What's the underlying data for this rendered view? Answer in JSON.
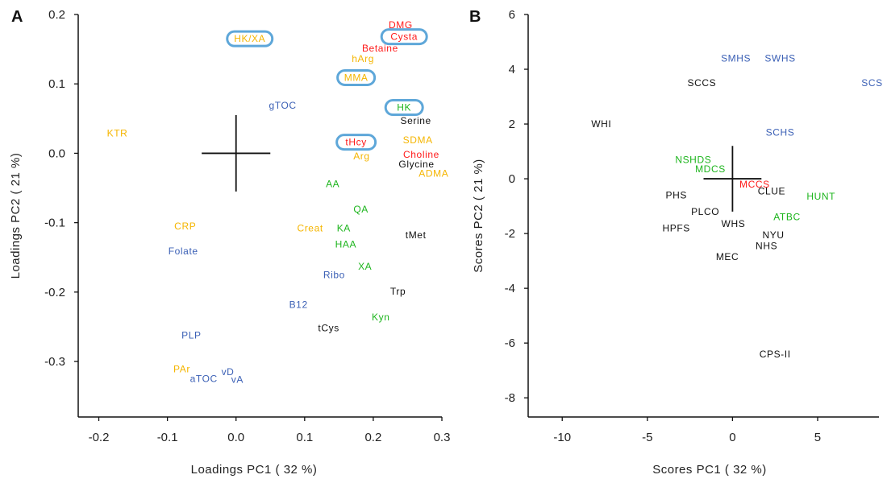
{
  "colors": {
    "orange": "#f5b500",
    "red": "#ff1a1a",
    "blue": "#3a5fb5",
    "green": "#1db51d",
    "black": "#111111",
    "highlight_box": "#5ea7d9"
  },
  "chart_data": [
    {
      "panel": "A",
      "type": "scatter",
      "xlabel": "Loadings PC1 ( 32 %)",
      "ylabel": "Loadings PC2 ( 21 %)",
      "xlim": [
        -0.23,
        0.3
      ],
      "ylim": [
        -0.38,
        0.2
      ],
      "xticks": [
        "-0.2",
        "-0.1",
        "0.0",
        "0.1",
        "0.2",
        "0.3"
      ],
      "yticks": [
        "0.2",
        "0.1",
        "0.0",
        "-0.1",
        "-0.2",
        "-0.3"
      ],
      "xtick_values": [
        -0.2,
        -0.1,
        0.0,
        0.1,
        0.2,
        0.3
      ],
      "ytick_values": [
        0.2,
        0.1,
        0.0,
        -0.1,
        -0.2,
        -0.3
      ],
      "cross": {
        "x": 0,
        "y": 0,
        "dx": 0.05,
        "dy": 0.055
      },
      "points": [
        {
          "label": "DMG",
          "x": 0.24,
          "y": 0.185,
          "color": "red"
        },
        {
          "label": "Cysta",
          "x": 0.245,
          "y": 0.168,
          "color": "red",
          "boxed": true
        },
        {
          "label": "Betaine",
          "x": 0.21,
          "y": 0.151,
          "color": "red"
        },
        {
          "label": "hArg",
          "x": 0.185,
          "y": 0.136,
          "color": "orange"
        },
        {
          "label": "HK/XA",
          "x": 0.02,
          "y": 0.165,
          "color": "orange",
          "boxed": true
        },
        {
          "label": "MMA",
          "x": 0.175,
          "y": 0.109,
          "color": "orange",
          "boxed": true
        },
        {
          "label": "HK",
          "x": 0.245,
          "y": 0.066,
          "color": "green",
          "boxed": true
        },
        {
          "label": "gTOC",
          "x": 0.068,
          "y": 0.069,
          "color": "blue"
        },
        {
          "label": "Serine",
          "x": 0.262,
          "y": 0.047,
          "color": "black"
        },
        {
          "label": "KTR",
          "x": -0.173,
          "y": 0.029,
          "color": "orange"
        },
        {
          "label": "SDMA",
          "x": 0.265,
          "y": 0.019,
          "color": "orange"
        },
        {
          "label": "tHcy",
          "x": 0.175,
          "y": 0.016,
          "color": "red",
          "boxed": true
        },
        {
          "label": "Choline",
          "x": 0.27,
          "y": -0.002,
          "color": "red"
        },
        {
          "label": "Arg",
          "x": 0.183,
          "y": -0.004,
          "color": "orange"
        },
        {
          "label": "Glycine",
          "x": 0.263,
          "y": -0.016,
          "color": "black"
        },
        {
          "label": "ADMA",
          "x": 0.288,
          "y": -0.029,
          "color": "orange"
        },
        {
          "label": "AA",
          "x": 0.141,
          "y": -0.044,
          "color": "green"
        },
        {
          "label": "QA",
          "x": 0.182,
          "y": -0.081,
          "color": "green"
        },
        {
          "label": "CRP",
          "x": -0.074,
          "y": -0.105,
          "color": "orange"
        },
        {
          "label": "Creat",
          "x": 0.108,
          "y": -0.108,
          "color": "orange"
        },
        {
          "label": "KA",
          "x": 0.157,
          "y": -0.108,
          "color": "green"
        },
        {
          "label": "tMet",
          "x": 0.262,
          "y": -0.118,
          "color": "black"
        },
        {
          "label": "HAA",
          "x": 0.16,
          "y": -0.131,
          "color": "green"
        },
        {
          "label": "Folate",
          "x": -0.077,
          "y": -0.141,
          "color": "blue"
        },
        {
          "label": "XA",
          "x": 0.188,
          "y": -0.163,
          "color": "green"
        },
        {
          "label": "Ribo",
          "x": 0.143,
          "y": -0.175,
          "color": "blue"
        },
        {
          "label": "Trp",
          "x": 0.236,
          "y": -0.199,
          "color": "black"
        },
        {
          "label": "B12",
          "x": 0.091,
          "y": -0.218,
          "color": "blue"
        },
        {
          "label": "Kyn",
          "x": 0.211,
          "y": -0.236,
          "color": "green"
        },
        {
          "label": "tCys",
          "x": 0.135,
          "y": -0.252,
          "color": "black"
        },
        {
          "label": "PLP",
          "x": -0.065,
          "y": -0.262,
          "color": "blue"
        },
        {
          "label": "PAr",
          "x": -0.079,
          "y": -0.311,
          "color": "orange"
        },
        {
          "label": "vD",
          "x": -0.012,
          "y": -0.315,
          "color": "blue"
        },
        {
          "label": "aTOC",
          "x": -0.047,
          "y": -0.325,
          "color": "blue"
        },
        {
          "label": "vA",
          "x": 0.002,
          "y": -0.326,
          "color": "blue"
        }
      ]
    },
    {
      "panel": "B",
      "type": "scatter",
      "xlabel": "Scores PC1 ( 32 %)",
      "ylabel": "Scores PC2 ( 21 %)",
      "xlim": [
        -12,
        8.6
      ],
      "ylim": [
        -8.7,
        6
      ],
      "xticks": [
        "-10",
        "-5",
        "0",
        "5"
      ],
      "yticks": [
        "6",
        "4",
        "2",
        "0",
        "-2",
        "-4",
        "-6",
        "-8"
      ],
      "xtick_values": [
        -10,
        -5,
        0,
        5
      ],
      "ytick_values": [
        6,
        4,
        2,
        0,
        -2,
        -4,
        -6,
        -8
      ],
      "cross": {
        "x": 0,
        "y": 0,
        "dx": 1.7,
        "dy": 1.2
      },
      "points": [
        {
          "label": "SMHS",
          "x": 0.2,
          "y": 4.4,
          "color": "blue"
        },
        {
          "label": "SWHS",
          "x": 2.8,
          "y": 4.4,
          "color": "blue"
        },
        {
          "label": "SCS",
          "x": 8.2,
          "y": 3.5,
          "color": "blue"
        },
        {
          "label": "SCCS",
          "x": -1.8,
          "y": 3.5,
          "color": "black"
        },
        {
          "label": "WHI",
          "x": -7.7,
          "y": 2.0,
          "color": "black"
        },
        {
          "label": "SCHS",
          "x": 2.8,
          "y": 1.7,
          "color": "blue"
        },
        {
          "label": "NSHDS",
          "x": -2.3,
          "y": 0.7,
          "color": "green"
        },
        {
          "label": "MDCS",
          "x": -1.3,
          "y": 0.35,
          "color": "green"
        },
        {
          "label": "MCCS",
          "x": 1.3,
          "y": -0.2,
          "color": "red"
        },
        {
          "label": "CLUE",
          "x": 2.3,
          "y": -0.45,
          "color": "black"
        },
        {
          "label": "HUNT",
          "x": 5.2,
          "y": -0.65,
          "color": "green"
        },
        {
          "label": "PHS",
          "x": -3.3,
          "y": -0.6,
          "color": "black"
        },
        {
          "label": "PLCO",
          "x": -1.6,
          "y": -1.2,
          "color": "black"
        },
        {
          "label": "ATBC",
          "x": 3.2,
          "y": -1.4,
          "color": "green"
        },
        {
          "label": "WHS",
          "x": 0.05,
          "y": -1.65,
          "color": "black"
        },
        {
          "label": "HPFS",
          "x": -3.3,
          "y": -1.8,
          "color": "black"
        },
        {
          "label": "NYU",
          "x": 2.4,
          "y": -2.05,
          "color": "black"
        },
        {
          "label": "NHS",
          "x": 2.0,
          "y": -2.45,
          "color": "black"
        },
        {
          "label": "MEC",
          "x": -0.3,
          "y": -2.85,
          "color": "black"
        },
        {
          "label": "CPS-II",
          "x": 2.5,
          "y": -6.4,
          "color": "black"
        }
      ]
    }
  ]
}
